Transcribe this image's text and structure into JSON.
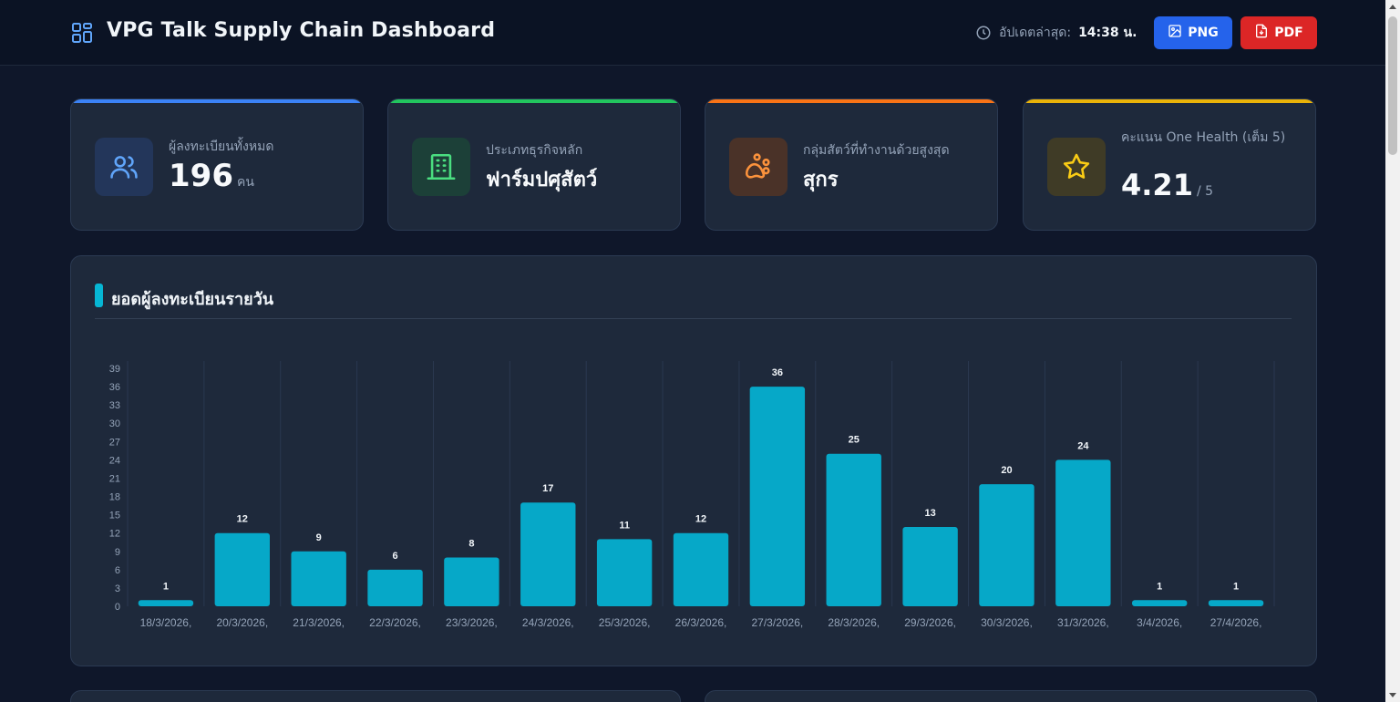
{
  "header": {
    "title": "VPG Talk Supply Chain Dashboard",
    "logo_icon": "grid-icon",
    "updated_label": "อัปเดตล่าสุด:",
    "updated_time": "14:38 น.",
    "png_label": "PNG",
    "pdf_label": "PDF"
  },
  "cards": [
    {
      "label": "ผู้ลงทะเบียนทั้งหมด",
      "value": "196",
      "unit": "คน",
      "icon": "users-icon",
      "accent": "#3b82f6"
    },
    {
      "label": "ประเภทธุรกิจหลัก",
      "value": "ฟาร์มปศุสัตว์",
      "unit": "",
      "icon": "building-icon",
      "accent": "#22c55e"
    },
    {
      "label": "กลุ่มสัตว์ที่ทำงานด้วยสูงสุด",
      "value": "สุกร",
      "unit": "",
      "icon": "paw-icon",
      "accent": "#f97316"
    },
    {
      "label": "คะแนน One Health (เต็ม 5)",
      "value": "4.21",
      "unit": "/ 5",
      "icon": "star-icon",
      "accent": "#eab308"
    }
  ],
  "chart_panel": {
    "title": "ยอดผู้ลงทะเบียนรายวัน"
  },
  "chart_data": {
    "type": "bar",
    "categories": [
      "18/3/2026,",
      "20/3/2026,",
      "21/3/2026,",
      "22/3/2026,",
      "23/3/2026,",
      "24/3/2026,",
      "25/3/2026,",
      "26/3/2026,",
      "27/3/2026,",
      "28/3/2026,",
      "29/3/2026,",
      "30/3/2026,",
      "31/3/2026,",
      "3/4/2026,",
      "27/4/2026,"
    ],
    "values": [
      1,
      12,
      9,
      6,
      8,
      17,
      11,
      12,
      36,
      25,
      13,
      20,
      24,
      1,
      1
    ],
    "yticks": [
      0,
      3,
      6,
      9,
      12,
      15,
      18,
      21,
      24,
      27,
      30,
      33,
      36,
      39
    ],
    "ylim": [
      0,
      39
    ],
    "bar_color": "#06a8c8",
    "data_labels": true,
    "grid": "vertical"
  },
  "colors": {
    "background": "#0f172a",
    "panel": "#1e293b",
    "png_button": "#2563eb",
    "pdf_button": "#dc2626"
  }
}
